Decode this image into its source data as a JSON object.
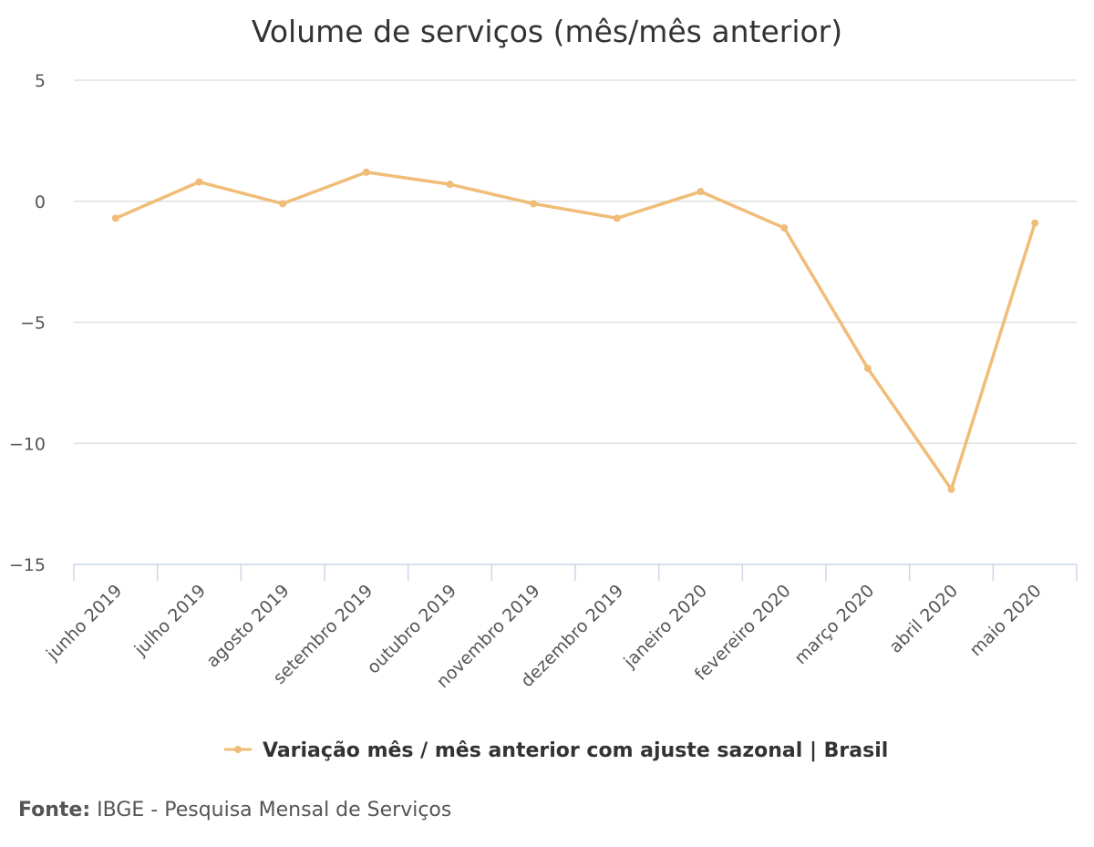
{
  "chart_data": {
    "type": "line",
    "title": "Volume de serviços (mês/mês anterior)",
    "categories": [
      "junho 2019",
      "julho 2019",
      "agosto 2019",
      "setembro 2019",
      "outubro 2019",
      "novembro 2019",
      "dezembro 2019",
      "janeiro 2020",
      "fevereiro 2020",
      "março 2020",
      "abril 2020",
      "maio 2020"
    ],
    "series": [
      {
        "name": "Variação mês / mês anterior com ajuste sazonal | Brasil",
        "color": "#f0bd78",
        "values": [
          -0.7,
          0.8,
          -0.1,
          1.2,
          0.7,
          -0.1,
          -0.7,
          0.4,
          -1.1,
          -6.9,
          -11.9,
          -0.9
        ]
      }
    ],
    "yticks": [
      "5",
      "0",
      "−5",
      "−10",
      "−15"
    ],
    "ytick_values": [
      5,
      0,
      -5,
      -10,
      -15
    ],
    "ylim": [
      -15,
      5
    ],
    "grid": true,
    "legend_position": "bottom"
  },
  "source": {
    "label": "Fonte:",
    "text": "IBGE - Pesquisa Mensal de Serviços"
  }
}
